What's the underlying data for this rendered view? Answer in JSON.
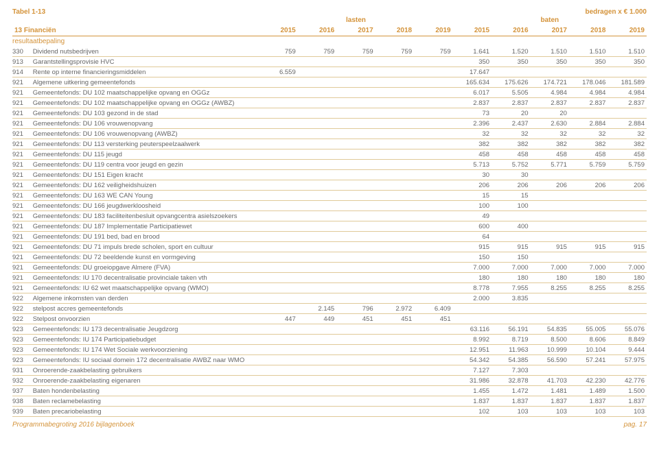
{
  "header": {
    "tabel": "Tabel 1-13",
    "units": "bedragen x € 1.000",
    "lasten": "lasten",
    "baten": "baten",
    "section": "13 Financiën",
    "sub": "resultaatbepaling",
    "years": [
      "2015",
      "2016",
      "2017",
      "2018",
      "2019",
      "2015",
      "2016",
      "2017",
      "2018",
      "2019"
    ]
  },
  "footer": {
    "left": "Programmabegroting 2016 bijlagenboek",
    "right": "pag. 17"
  },
  "rows": [
    {
      "c": "330",
      "l": "Dividend nutsbedrijven",
      "v": [
        "759",
        "759",
        "759",
        "759",
        "759",
        "1.641",
        "1.520",
        "1.510",
        "1.510",
        "1.510"
      ]
    },
    {
      "c": "913",
      "l": "Garantstellingsprovisie HVC",
      "v": [
        "",
        "",
        "",
        "",
        "",
        "350",
        "350",
        "350",
        "350",
        "350"
      ]
    },
    {
      "c": "914",
      "l": "Rente op interne financieringsmiddelen",
      "v": [
        "6.559",
        "",
        "",
        "",
        "",
        "17.647",
        "",
        "",
        "",
        ""
      ]
    },
    {
      "c": "921",
      "l": "Algemene uitkering gemeentefonds",
      "v": [
        "",
        "",
        "",
        "",
        "",
        "165.634",
        "175.626",
        "174.721",
        "178.046",
        "181.589"
      ]
    },
    {
      "c": "921",
      "l": "Gemeentefonds: DU 102 maatschappelijke opvang en OGGz",
      "v": [
        "",
        "",
        "",
        "",
        "",
        "6.017",
        "5.505",
        "4.984",
        "4.984",
        "4.984"
      ]
    },
    {
      "c": "921",
      "l": "Gemeentefonds: DU 102 maatschappelijke opvang en OGGz (AWBZ)",
      "v": [
        "",
        "",
        "",
        "",
        "",
        "2.837",
        "2.837",
        "2.837",
        "2.837",
        "2.837"
      ]
    },
    {
      "c": "921",
      "l": "Gemeentefonds: DU 103 gezond in de stad",
      "v": [
        "",
        "",
        "",
        "",
        "",
        "73",
        "20",
        "20",
        "",
        ""
      ]
    },
    {
      "c": "921",
      "l": "Gemeentefonds: DU 106 vrouwenopvang",
      "v": [
        "",
        "",
        "",
        "",
        "",
        "2.396",
        "2.437",
        "2.630",
        "2.884",
        "2.884"
      ]
    },
    {
      "c": "921",
      "l": "Gemeentefonds: DU 106 vrouwenopvang (AWBZ)",
      "v": [
        "",
        "",
        "",
        "",
        "",
        "32",
        "32",
        "32",
        "32",
        "32"
      ]
    },
    {
      "c": "921",
      "l": "Gemeentefonds: DU 113 versterking peuterspeelzaalwerk",
      "v": [
        "",
        "",
        "",
        "",
        "",
        "382",
        "382",
        "382",
        "382",
        "382"
      ]
    },
    {
      "c": "921",
      "l": "Gemeentefonds: DU 115 jeugd",
      "v": [
        "",
        "",
        "",
        "",
        "",
        "458",
        "458",
        "458",
        "458",
        "458"
      ]
    },
    {
      "c": "921",
      "l": "Gemeentefonds: DU 119 centra voor jeugd en gezin",
      "v": [
        "",
        "",
        "",
        "",
        "",
        "5.713",
        "5.752",
        "5.771",
        "5.759",
        "5.759"
      ]
    },
    {
      "c": "921",
      "l": "Gemeentefonds: DU 151 Eigen kracht",
      "v": [
        "",
        "",
        "",
        "",
        "",
        "30",
        "30",
        "",
        "",
        ""
      ]
    },
    {
      "c": "921",
      "l": "Gemeentefonds: DU 162 veiligheidshuizen",
      "v": [
        "",
        "",
        "",
        "",
        "",
        "206",
        "206",
        "206",
        "206",
        "206"
      ]
    },
    {
      "c": "921",
      "l": "Gemeentefonds: DU 163 WE CAN Young",
      "v": [
        "",
        "",
        "",
        "",
        "",
        "15",
        "15",
        "",
        "",
        ""
      ]
    },
    {
      "c": "921",
      "l": "Gemeentefonds: DU 166 jeugdwerkloosheid",
      "v": [
        "",
        "",
        "",
        "",
        "",
        "100",
        "100",
        "",
        "",
        ""
      ]
    },
    {
      "c": "921",
      "l": "Gemeentefonds: DU 183 faciliteitenbesluit opvangcentra asielszoekers",
      "v": [
        "",
        "",
        "",
        "",
        "",
        "49",
        "",
        "",
        "",
        ""
      ]
    },
    {
      "c": "921",
      "l": "Gemeentefonds: DU 187 Implementatie Participatiewet",
      "v": [
        "",
        "",
        "",
        "",
        "",
        "600",
        "400",
        "",
        "",
        ""
      ]
    },
    {
      "c": "921",
      "l": "Gemeentefonds: DU 191 bed, bad en brood",
      "v": [
        "",
        "",
        "",
        "",
        "",
        "64",
        "",
        "",
        "",
        ""
      ]
    },
    {
      "c": "921",
      "l": "Gemeentefonds: DU 71 impuls brede scholen, sport en cultuur",
      "v": [
        "",
        "",
        "",
        "",
        "",
        "915",
        "915",
        "915",
        "915",
        "915"
      ]
    },
    {
      "c": "921",
      "l": "Gemeentefonds: DU 72 beeldende kunst en vormgeving",
      "v": [
        "",
        "",
        "",
        "",
        "",
        "150",
        "150",
        "",
        "",
        ""
      ]
    },
    {
      "c": "921",
      "l": "Gemeentefonds: DU groeiopgave Almere (FVA)",
      "v": [
        "",
        "",
        "",
        "",
        "",
        "7.000",
        "7.000",
        "7.000",
        "7.000",
        "7.000"
      ]
    },
    {
      "c": "921",
      "l": "Gemeentefonds: IU 170 decentralisatie provinciale taken vth",
      "v": [
        "",
        "",
        "",
        "",
        "",
        "180",
        "180",
        "180",
        "180",
        "180"
      ]
    },
    {
      "c": "921",
      "l": "Gemeentefonds: IU 62 wet maatschappelijke opvang (WMO)",
      "v": [
        "",
        "",
        "",
        "",
        "",
        "8.778",
        "7.955",
        "8.255",
        "8.255",
        "8.255"
      ]
    },
    {
      "c": "922",
      "l": "Algemene inkomsten van derden",
      "v": [
        "",
        "",
        "",
        "",
        "",
        "2.000",
        "3.835",
        "",
        "",
        ""
      ]
    },
    {
      "c": "922",
      "l": "stelpost accres gemeentefonds",
      "v": [
        "",
        "2.145",
        "796",
        "2.972",
        "6.409",
        "",
        "",
        "",
        "",
        ""
      ]
    },
    {
      "c": "922",
      "l": "Stelpost onvoorzien",
      "v": [
        "447",
        "449",
        "451",
        "451",
        "451",
        "",
        "",
        "",
        "",
        ""
      ]
    },
    {
      "c": "923",
      "l": "Gemeentefonds: IU 173 decentralisatie Jeugdzorg",
      "v": [
        "",
        "",
        "",
        "",
        "",
        "63.116",
        "56.191",
        "54.835",
        "55.005",
        "55.076"
      ]
    },
    {
      "c": "923",
      "l": "Gemeentefonds: IU 174 Participatiebudget",
      "v": [
        "",
        "",
        "",
        "",
        "",
        "8.992",
        "8.719",
        "8.500",
        "8.606",
        "8.849"
      ]
    },
    {
      "c": "923",
      "l": "Gemeentefonds: IU 174 Wet Sociale werkvoorziening",
      "v": [
        "",
        "",
        "",
        "",
        "",
        "12.951",
        "11.963",
        "10.999",
        "10.104",
        "9.444"
      ]
    },
    {
      "c": "923",
      "l": "Gemeentefonds: IU sociaal domein 172 decentralisatie AWBZ naar WMO",
      "v": [
        "",
        "",
        "",
        "",
        "",
        "54.342",
        "54.385",
        "56.590",
        "57.241",
        "57.975"
      ]
    },
    {
      "c": "931",
      "l": "Onroerende-zaakbelasting gebruikers",
      "v": [
        "",
        "",
        "",
        "",
        "",
        "7.127",
        "7.303",
        "",
        "",
        ""
      ]
    },
    {
      "c": "932",
      "l": "Onroerende-zaakbelasting eigenaren",
      "v": [
        "",
        "",
        "",
        "",
        "",
        "31.986",
        "32.878",
        "41.703",
        "42.230",
        "42.776"
      ]
    },
    {
      "c": "937",
      "l": "Baten hondenbelasting",
      "v": [
        "",
        "",
        "",
        "",
        "",
        "1.455",
        "1.472",
        "1.481",
        "1.489",
        "1.500"
      ]
    },
    {
      "c": "938",
      "l": "Baten reclamebelasting",
      "v": [
        "",
        "",
        "",
        "",
        "",
        "1.837",
        "1.837",
        "1.837",
        "1.837",
        "1.837"
      ]
    },
    {
      "c": "939",
      "l": "Baten precariobelasting",
      "v": [
        "",
        "",
        "",
        "",
        "",
        "102",
        "103",
        "103",
        "103",
        "103"
      ]
    }
  ]
}
